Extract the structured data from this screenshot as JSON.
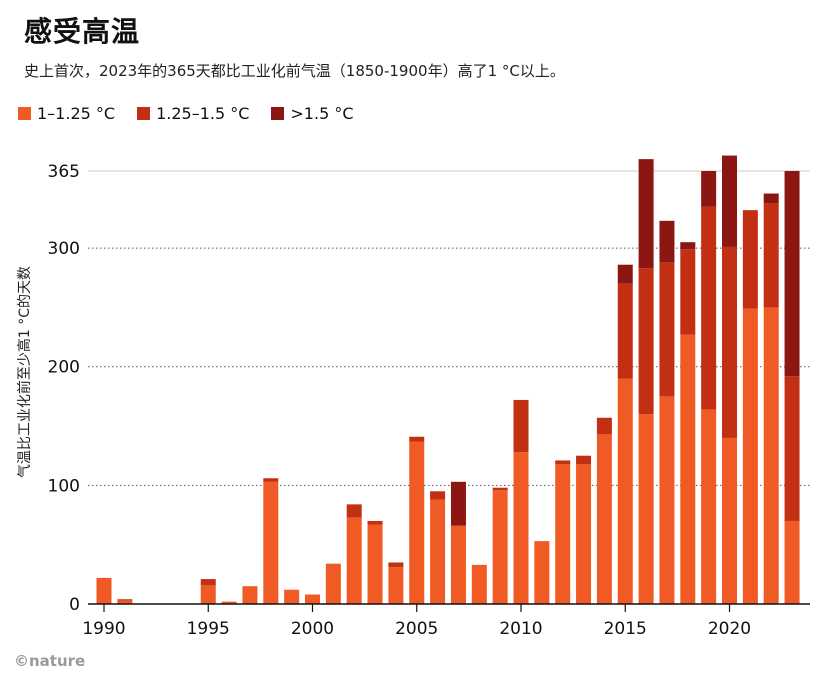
{
  "header": {
    "title": "感受高温",
    "subtitle": "史上首次，2023年的365天都比工业化前气温（1850-1900年）高了1 °C以上。"
  },
  "legend": [
    {
      "label": "1–1.25 °C",
      "color": "#f05a24"
    },
    {
      "label": "1.25–1.5 °C",
      "color": "#c22f12"
    },
    {
      "label": ">1.5 °C",
      "color": "#8c1611"
    }
  ],
  "credit": "©nature",
  "chart_data": {
    "type": "bar",
    "stacked": true,
    "title": "感受高温",
    "ylabel": "气温比工业化前至少高1 °C的天数",
    "xlabel": "",
    "ylim": [
      0,
      365
    ],
    "y_ticks": [
      0,
      100,
      200,
      300,
      365
    ],
    "x_ticks": [
      1990,
      1995,
      2000,
      2005,
      2010,
      2015,
      2020
    ],
    "categories": [
      1990,
      1991,
      1992,
      1993,
      1994,
      1995,
      1996,
      1997,
      1998,
      1999,
      2000,
      2001,
      2002,
      2003,
      2004,
      2005,
      2006,
      2007,
      2008,
      2009,
      2010,
      2011,
      2012,
      2013,
      2014,
      2015,
      2016,
      2017,
      2018,
      2019,
      2020,
      2021,
      2022,
      2023
    ],
    "series": [
      {
        "name": "1–1.25 °C",
        "values": [
          22,
          3,
          0,
          0,
          0,
          16,
          2,
          15,
          103,
          12,
          8,
          34,
          73,
          67,
          31,
          137,
          88,
          66,
          33,
          96,
          128,
          53,
          118,
          118,
          143,
          190,
          160,
          175,
          227,
          164,
          140,
          249,
          250,
          70
        ]
      },
      {
        "name": "1.25–1.5 °C",
        "values": [
          0,
          1,
          0,
          0,
          0,
          5,
          0,
          0,
          3,
          0,
          0,
          0,
          11,
          3,
          4,
          4,
          7,
          0,
          0,
          2,
          44,
          0,
          3,
          7,
          14,
          80,
          123,
          113,
          72,
          171,
          161,
          83,
          88,
          122
        ]
      },
      {
        "name": ">1.5 °C",
        "values": [
          0,
          0,
          0,
          0,
          0,
          0,
          0,
          0,
          0,
          0,
          0,
          0,
          0,
          0,
          0,
          0,
          0,
          37,
          0,
          0,
          0,
          0,
          0,
          0,
          0,
          16,
          92,
          35,
          6,
          30,
          77,
          0,
          8,
          173
        ]
      }
    ],
    "colors": [
      "#f05a24",
      "#c22f12",
      "#8c1611"
    ]
  }
}
